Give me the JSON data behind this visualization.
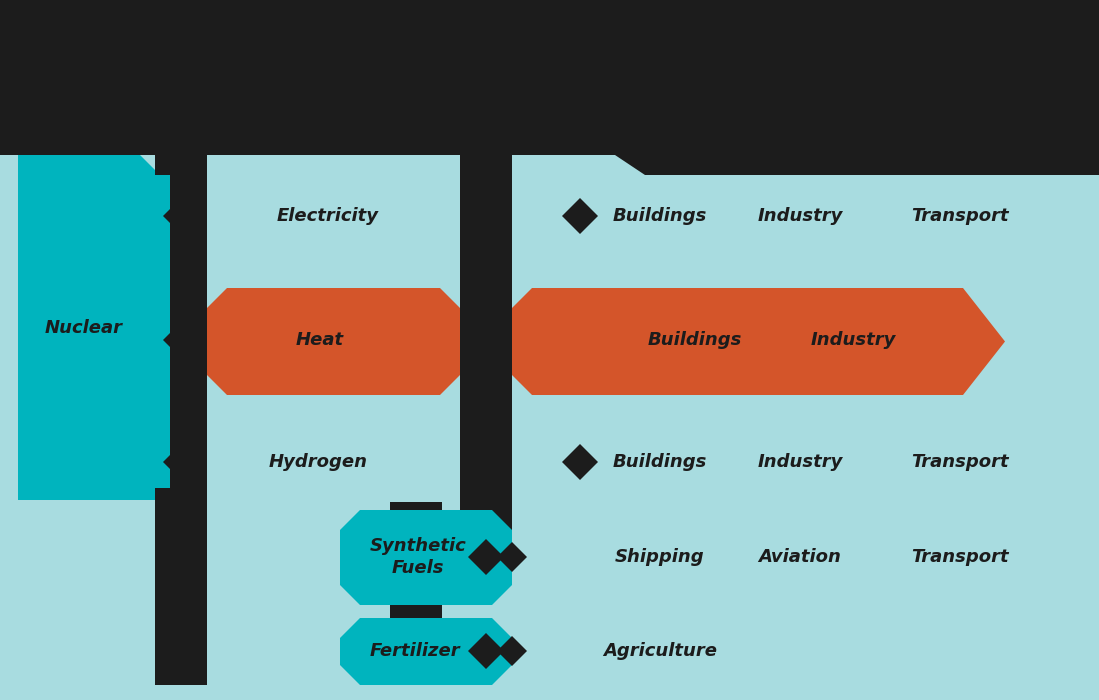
{
  "bg": "#1c1c1c",
  "lt": "#a8dce0",
  "dt": "#00b4be",
  "or": "#d4552a",
  "fig_w": 10.99,
  "fig_h": 7.0,
  "dpi": 100,
  "nuclear_label": "Nuclear",
  "elec_label": "Electricity",
  "heat_label": "Heat",
  "hyd_label": "Hydrogen",
  "sf_label": "Synthetic\nFuels",
  "fert_label": "Fertilizer",
  "elec_sectors": [
    "Buildings",
    "Industry",
    "Transport"
  ],
  "heat_sectors": [
    "Buildings",
    "Industry"
  ],
  "hyd_sectors": [
    "Buildings",
    "Industry",
    "Transport"
  ],
  "sf_sectors": [
    "Shipping",
    "Aviation",
    "Transport"
  ],
  "fert_sectors": [
    "Agriculture"
  ],
  "lfs": 13
}
